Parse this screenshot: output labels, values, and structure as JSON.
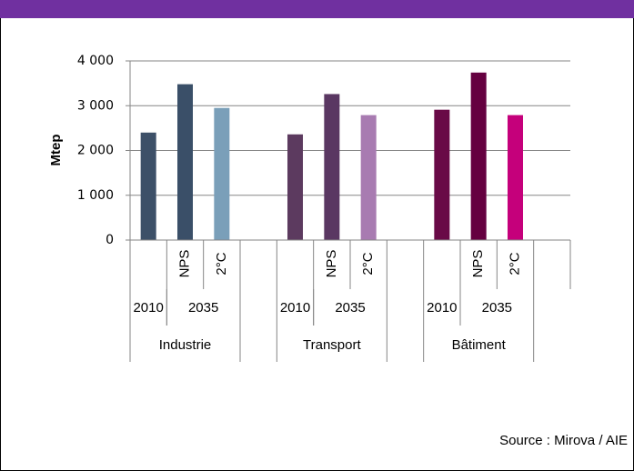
{
  "chart_data": {
    "type": "bar",
    "y_label": "Mtep",
    "source": "Source : Mirova / AIE",
    "groups": [
      "Industrie",
      "Transport",
      "Bâtiment"
    ],
    "periods": [
      "2010",
      "2035"
    ],
    "categories": [
      null,
      "NPS",
      "2°C",
      null,
      "NPS",
      "2°C",
      null,
      "NPS",
      "2°C"
    ],
    "values": [
      2400,
      3480,
      2950,
      2360,
      3260,
      2790,
      2910,
      3740,
      2790
    ],
    "colors": [
      "#3d5068",
      "#3a4f68",
      "#7a9fb9",
      "#5c3a5f",
      "#5a3762",
      "#a87bb1",
      "#690a47",
      "#650040",
      "#c5007b"
    ],
    "ylim": [
      0,
      4000
    ],
    "yticks": [
      {
        "value": 0,
        "label": "0"
      },
      {
        "value": 1000,
        "label": "1 000"
      },
      {
        "value": 2000,
        "label": "2 000"
      },
      {
        "value": 3000,
        "label": "3 000"
      },
      {
        "value": 4000,
        "label": "4 000"
      }
    ],
    "grid": true
  }
}
